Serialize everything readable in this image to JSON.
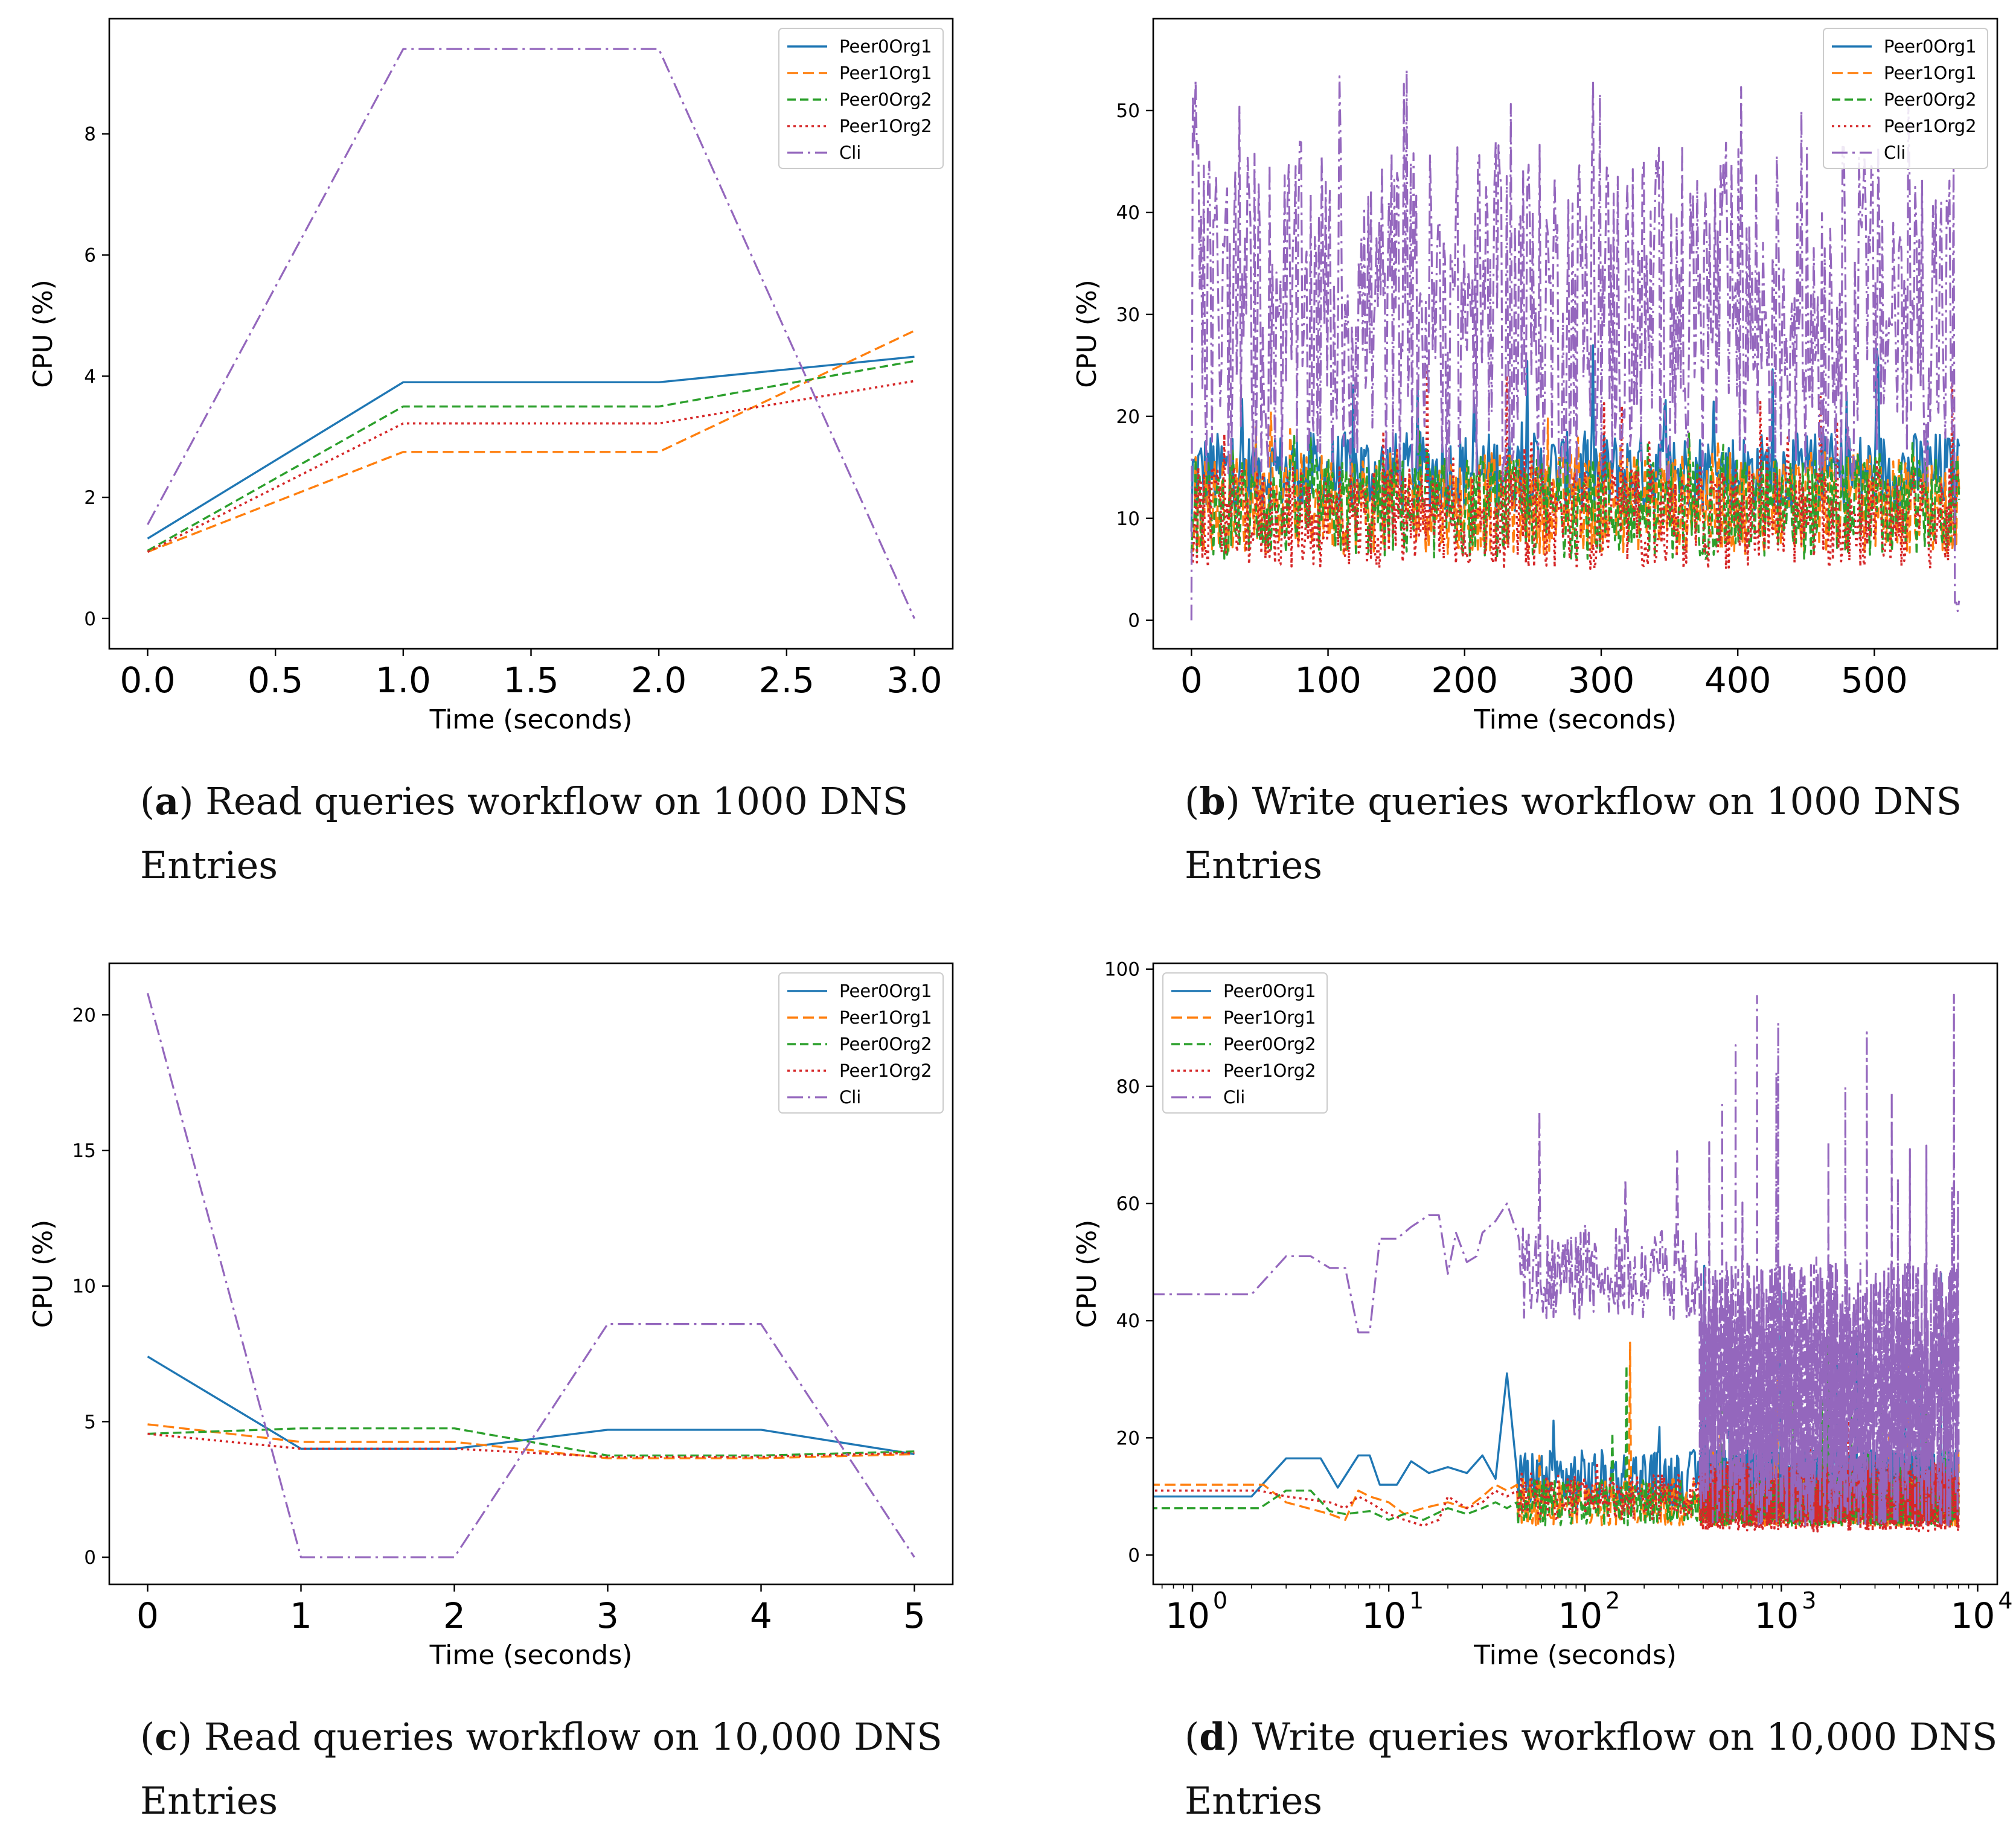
{
  "legend_names": [
    "Peer0Org1",
    "Peer1Org1",
    "Peer0Org2",
    "Peer1Org2",
    "Cli"
  ],
  "series_colors": [
    "#1f77b4",
    "#ff7f0e",
    "#2ca02c",
    "#d62728",
    "#9467bd"
  ],
  "captions": [
    {
      "letter": "a",
      "text": " Read queries workflow on 1000 DNS Entries"
    },
    {
      "letter": "b",
      "text": " Write queries workflow on 1000 DNS Entries"
    },
    {
      "letter": "c",
      "text": " Read queries workflow on 10,000 DNS Entries"
    },
    {
      "letter": "d",
      "text": " Write queries workflow on 10,000 DNS Entries"
    }
  ],
  "chart_data": [
    {
      "id": "a",
      "type": "line",
      "xscale": "linear",
      "xlabel": "Time (seconds)",
      "ylabel": "CPU (%)",
      "xlim": [
        -0.15,
        3.15
      ],
      "ylim": [
        -0.5,
        9.9
      ],
      "xticks": [
        0.0,
        0.5,
        1.0,
        1.5,
        2.0,
        2.5,
        3.0
      ],
      "xtick_labels": [
        "0.0",
        "0.5",
        "1.0",
        "1.5",
        "2.0",
        "2.5",
        "3.0"
      ],
      "yticks": [
        0,
        2,
        4,
        6,
        8
      ],
      "ytick_labels": [
        "0",
        "2",
        "4",
        "6",
        "8"
      ],
      "legend": "top-right",
      "x": [
        0,
        1,
        2,
        3
      ],
      "series": [
        {
          "name": "Peer0Org1",
          "values": [
            1.32,
            3.9,
            3.9,
            4.32
          ]
        },
        {
          "name": "Peer1Org1",
          "values": [
            1.1,
            2.75,
            2.75,
            4.75
          ]
        },
        {
          "name": "Peer0Org2",
          "values": [
            1.12,
            3.5,
            3.5,
            4.25
          ]
        },
        {
          "name": "Peer1Org2",
          "values": [
            1.1,
            3.22,
            3.22,
            3.92
          ]
        },
        {
          "name": "Cli",
          "values": [
            1.55,
            9.4,
            9.4,
            0.0
          ]
        }
      ]
    },
    {
      "id": "b",
      "type": "line",
      "xscale": "linear",
      "xlabel": "Time (seconds)",
      "ylabel": "CPU (%)",
      "xlim": [
        -28,
        590
      ],
      "ylim": [
        -2.8,
        59
      ],
      "xticks": [
        0,
        100,
        200,
        300,
        400,
        500
      ],
      "xtick_labels": [
        "0",
        "100",
        "200",
        "300",
        "400",
        "500"
      ],
      "yticks": [
        0,
        10,
        20,
        30,
        40,
        50
      ],
      "ytick_labels": [
        "0",
        "10",
        "20",
        "30",
        "40",
        "50"
      ],
      "legend": "top-right",
      "x_range": [
        0,
        562
      ],
      "series": [
        {
          "name": "Peer0Org1",
          "base": 14.5,
          "amp": 4,
          "spike_max": 27.5
        },
        {
          "name": "Peer1Org1",
          "base": 11.5,
          "amp": 5,
          "spike_max": 21
        },
        {
          "name": "Peer0Org2",
          "base": 11,
          "amp": 5,
          "spike_max": 19
        },
        {
          "name": "Peer1Org2",
          "base": 10,
          "amp": 5,
          "spike_max": 26
        },
        {
          "name": "Cli",
          "base": 30,
          "amp": 17,
          "spike_max": 54
        }
      ]
    },
    {
      "id": "c",
      "type": "line",
      "xscale": "linear",
      "xlabel": "Time (seconds)",
      "ylabel": "CPU (%)",
      "xlim": [
        -0.25,
        5.25
      ],
      "ylim": [
        -1.0,
        21.9
      ],
      "xticks": [
        0,
        1,
        2,
        3,
        4,
        5
      ],
      "xtick_labels": [
        "0",
        "1",
        "2",
        "3",
        "4",
        "5"
      ],
      "yticks": [
        0,
        5,
        10,
        15,
        20
      ],
      "ytick_labels": [
        "0",
        "5",
        "10",
        "15",
        "20"
      ],
      "legend": "top-right",
      "x": [
        0,
        1,
        2,
        3,
        4,
        5
      ],
      "series": [
        {
          "name": "Peer0Org1",
          "values": [
            7.4,
            4.0,
            4.0,
            4.7,
            4.7,
            3.8
          ]
        },
        {
          "name": "Peer1Org1",
          "values": [
            4.9,
            4.25,
            4.25,
            3.65,
            3.65,
            3.8
          ]
        },
        {
          "name": "Peer0Org2",
          "values": [
            4.55,
            4.75,
            4.75,
            3.75,
            3.75,
            3.9
          ]
        },
        {
          "name": "Peer1Org2",
          "values": [
            4.55,
            4.0,
            4.0,
            3.7,
            3.7,
            3.85
          ]
        },
        {
          "name": "Cli",
          "values": [
            20.8,
            0.0,
            0.0,
            8.6,
            8.6,
            0.0
          ]
        }
      ]
    },
    {
      "id": "d",
      "type": "line",
      "xscale": "log",
      "xlabel": "Time (seconds)",
      "ylabel": "CPU (%)",
      "xlim_log10": [
        -0.2,
        4.1
      ],
      "ylim": [
        -5,
        101
      ],
      "xticks_log10": [
        0,
        1,
        2,
        3,
        4
      ],
      "xtick_labels": [
        "10",
        "10",
        "10",
        "10",
        "10"
      ],
      "xtick_exponents": [
        "0",
        "1",
        "2",
        "3",
        "4"
      ],
      "yticks": [
        0,
        20,
        40,
        60,
        80,
        100
      ],
      "ytick_labels": [
        "0",
        "20",
        "40",
        "60",
        "80",
        "100"
      ],
      "legend": "top-left",
      "x_range": [
        0.6,
        8000
      ],
      "series": [
        {
          "name": "Peer0Org1",
          "early": [
            [
              0.6,
              10
            ],
            [
              2,
              10
            ],
            [
              3,
              16.5
            ],
            [
              4.5,
              16.5
            ],
            [
              5.5,
              11.5
            ],
            [
              7,
              17
            ],
            [
              8,
              17
            ],
            [
              9,
              12
            ],
            [
              11,
              12
            ],
            [
              13,
              16
            ],
            [
              16,
              14
            ],
            [
              20,
              15
            ],
            [
              25,
              14
            ],
            [
              30,
              17
            ],
            [
              35,
              13
            ],
            [
              40,
              31
            ],
            [
              45,
              14
            ]
          ],
          "base": 13,
          "amp": 5,
          "spike_max": 52
        },
        {
          "name": "Peer1Org1",
          "early": [
            [
              0.6,
              12
            ],
            [
              2.3,
              12
            ],
            [
              3,
              9
            ],
            [
              5,
              7
            ],
            [
              6,
              6
            ],
            [
              7,
              11
            ],
            [
              8,
              10
            ],
            [
              10,
              9
            ],
            [
              12,
              7
            ],
            [
              15,
              8
            ],
            [
              20,
              9
            ],
            [
              25,
              8
            ],
            [
              30,
              10
            ],
            [
              35,
              12
            ],
            [
              40,
              11
            ],
            [
              45,
              12
            ]
          ],
          "base": 9,
          "amp": 4,
          "spike_max": 37
        },
        {
          "name": "Peer0Org2",
          "early": [
            [
              0.6,
              8
            ],
            [
              2.2,
              8
            ],
            [
              3,
              11
            ],
            [
              4,
              11
            ],
            [
              5,
              7.5
            ],
            [
              6,
              7
            ],
            [
              8,
              7.5
            ],
            [
              10,
              6
            ],
            [
              12,
              7
            ],
            [
              15,
              6
            ],
            [
              20,
              8
            ],
            [
              25,
              7
            ],
            [
              30,
              8
            ],
            [
              35,
              9
            ],
            [
              40,
              8
            ],
            [
              45,
              9
            ]
          ],
          "base": 9,
          "amp": 4,
          "spike_max": 38
        },
        {
          "name": "Peer1Org2",
          "early": [
            [
              0.6,
              11
            ],
            [
              2.2,
              11
            ],
            [
              3,
              10
            ],
            [
              5,
              9
            ],
            [
              6,
              8
            ],
            [
              7,
              10
            ],
            [
              8,
              9
            ],
            [
              10,
              7
            ],
            [
              12,
              6
            ],
            [
              15,
              5
            ],
            [
              18,
              6
            ],
            [
              20,
              10
            ],
            [
              25,
              8
            ],
            [
              30,
              9
            ],
            [
              35,
              11
            ],
            [
              40,
              10
            ],
            [
              45,
              11
            ]
          ],
          "base": 10,
          "amp": 4,
          "spike_max": 27
        },
        {
          "name": "Cli",
          "early": [
            [
              0.6,
              44.5
            ],
            [
              2,
              44.5
            ],
            [
              3,
              51
            ],
            [
              4,
              51
            ],
            [
              5,
              49
            ],
            [
              6,
              49
            ],
            [
              7,
              38
            ],
            [
              8,
              38
            ],
            [
              9,
              54
            ],
            [
              11,
              54
            ],
            [
              13,
              56
            ],
            [
              16,
              58
            ],
            [
              18,
              58
            ],
            [
              20,
              48
            ],
            [
              22,
              55
            ],
            [
              25,
              50
            ],
            [
              28,
              51
            ],
            [
              30,
              55
            ],
            [
              35,
              57
            ],
            [
              40,
              60
            ],
            [
              45,
              55
            ]
          ],
          "base": 45,
          "amp": 7,
          "spike_max": 96
        }
      ]
    }
  ]
}
